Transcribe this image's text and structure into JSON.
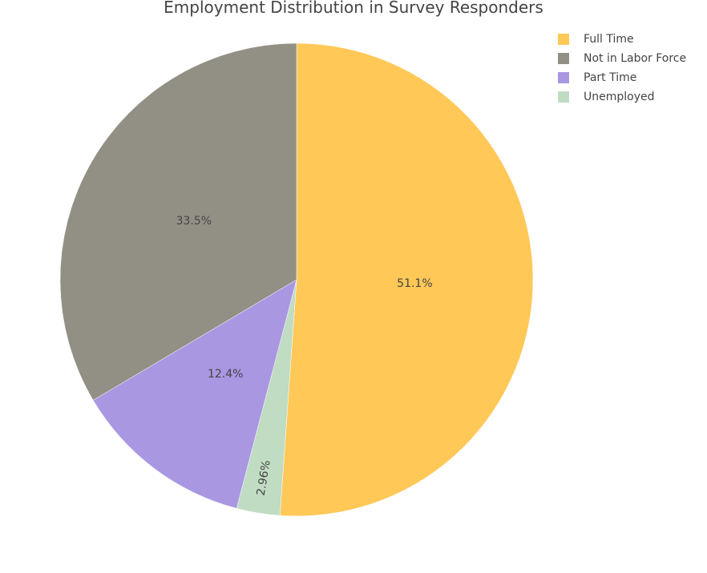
{
  "chart_data": {
    "type": "pie",
    "title": "Employment Distribution in Survey Responders",
    "legend_position": "top-right",
    "direction": "clockwise",
    "start_angle_deg": 0,
    "slices": [
      {
        "label": "Full Time",
        "value": 51.1,
        "display": "51.1%",
        "color": "#FFC857",
        "label_rotated": false
      },
      {
        "label": "Unemployed",
        "value": 2.96,
        "display": "2.96%",
        "color": "#C0DCC2",
        "label_rotated": true
      },
      {
        "label": "Part Time",
        "value": 12.4,
        "display": "12.4%",
        "color": "#A997E2",
        "label_rotated": false
      },
      {
        "label": "Not in Labor Force",
        "value": 33.5,
        "display": "33.5%",
        "color": "#928F84",
        "label_rotated": false
      }
    ],
    "legend_order": [
      "Full Time",
      "Not in Labor Force",
      "Part Time",
      "Unemployed"
    ]
  }
}
